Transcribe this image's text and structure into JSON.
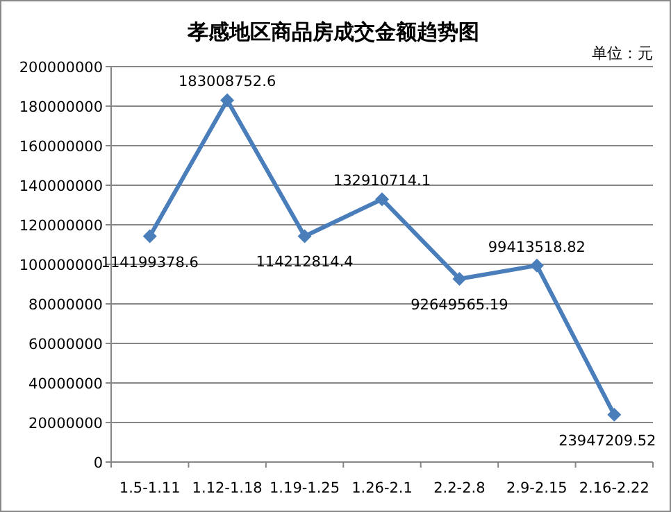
{
  "chart_data": {
    "type": "line",
    "title": "孝感地区商品房成交金额趋势图",
    "annotations": [
      "单位：元"
    ],
    "categories": [
      "1.5-1.11",
      "1.12-1.18",
      "1.19-1.25",
      "1.26-2.1",
      "2.2-2.8",
      "2.9-2.15",
      "2.16-2.22"
    ],
    "series": [
      {
        "color": "#4a7ebb",
        "values": [
          114199378.6,
          183008752.6,
          114212814.4,
          132910714.1,
          92649565.19,
          99413518.82,
          23947209.52
        ]
      }
    ],
    "ylim": [
      0,
      200000000
    ],
    "yticks": [
      0,
      20000000,
      40000000,
      60000000,
      80000000,
      100000000,
      120000000,
      140000000,
      160000000,
      180000000,
      200000000
    ],
    "grid": "y",
    "marker": "diamond",
    "data_labels": true
  }
}
